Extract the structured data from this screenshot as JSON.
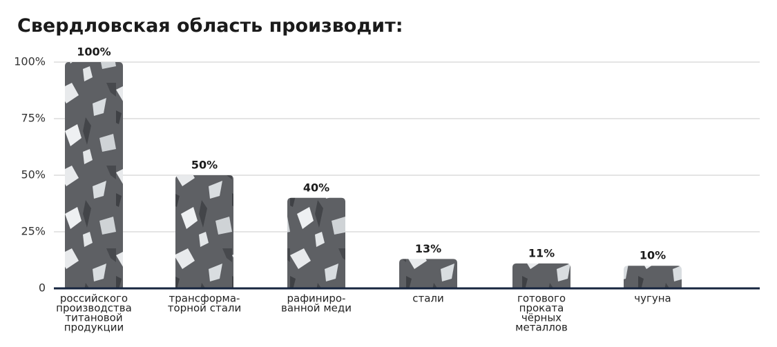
{
  "chart_data": {
    "type": "bar",
    "title": "Свердловская область производит:",
    "categories": [
      [
        "российского",
        "производства",
        "титановой",
        "продукции"
      ],
      [
        "трансформа-",
        "торной стали"
      ],
      [
        "рафиниро-",
        "ванной меди"
      ],
      [
        "стали"
      ],
      [
        "готового",
        "проката",
        "чёрных",
        "металлов"
      ],
      [
        "чугуна"
      ]
    ],
    "values": [
      100,
      50,
      40,
      13,
      11,
      10
    ],
    "value_labels": [
      "100%",
      "50%",
      "40%",
      "13%",
      "11%",
      "10%"
    ],
    "color": "#5e6064",
    "ylim": [
      0,
      100
    ],
    "yticks": [
      0,
      {
        "value": 25,
        "label": "25%"
      },
      {
        "value": 50,
        "label": "50%"
      },
      {
        "value": 75,
        "label": "75%"
      },
      {
        "value": 100,
        "label": "100%"
      }
    ],
    "grid": true
  }
}
